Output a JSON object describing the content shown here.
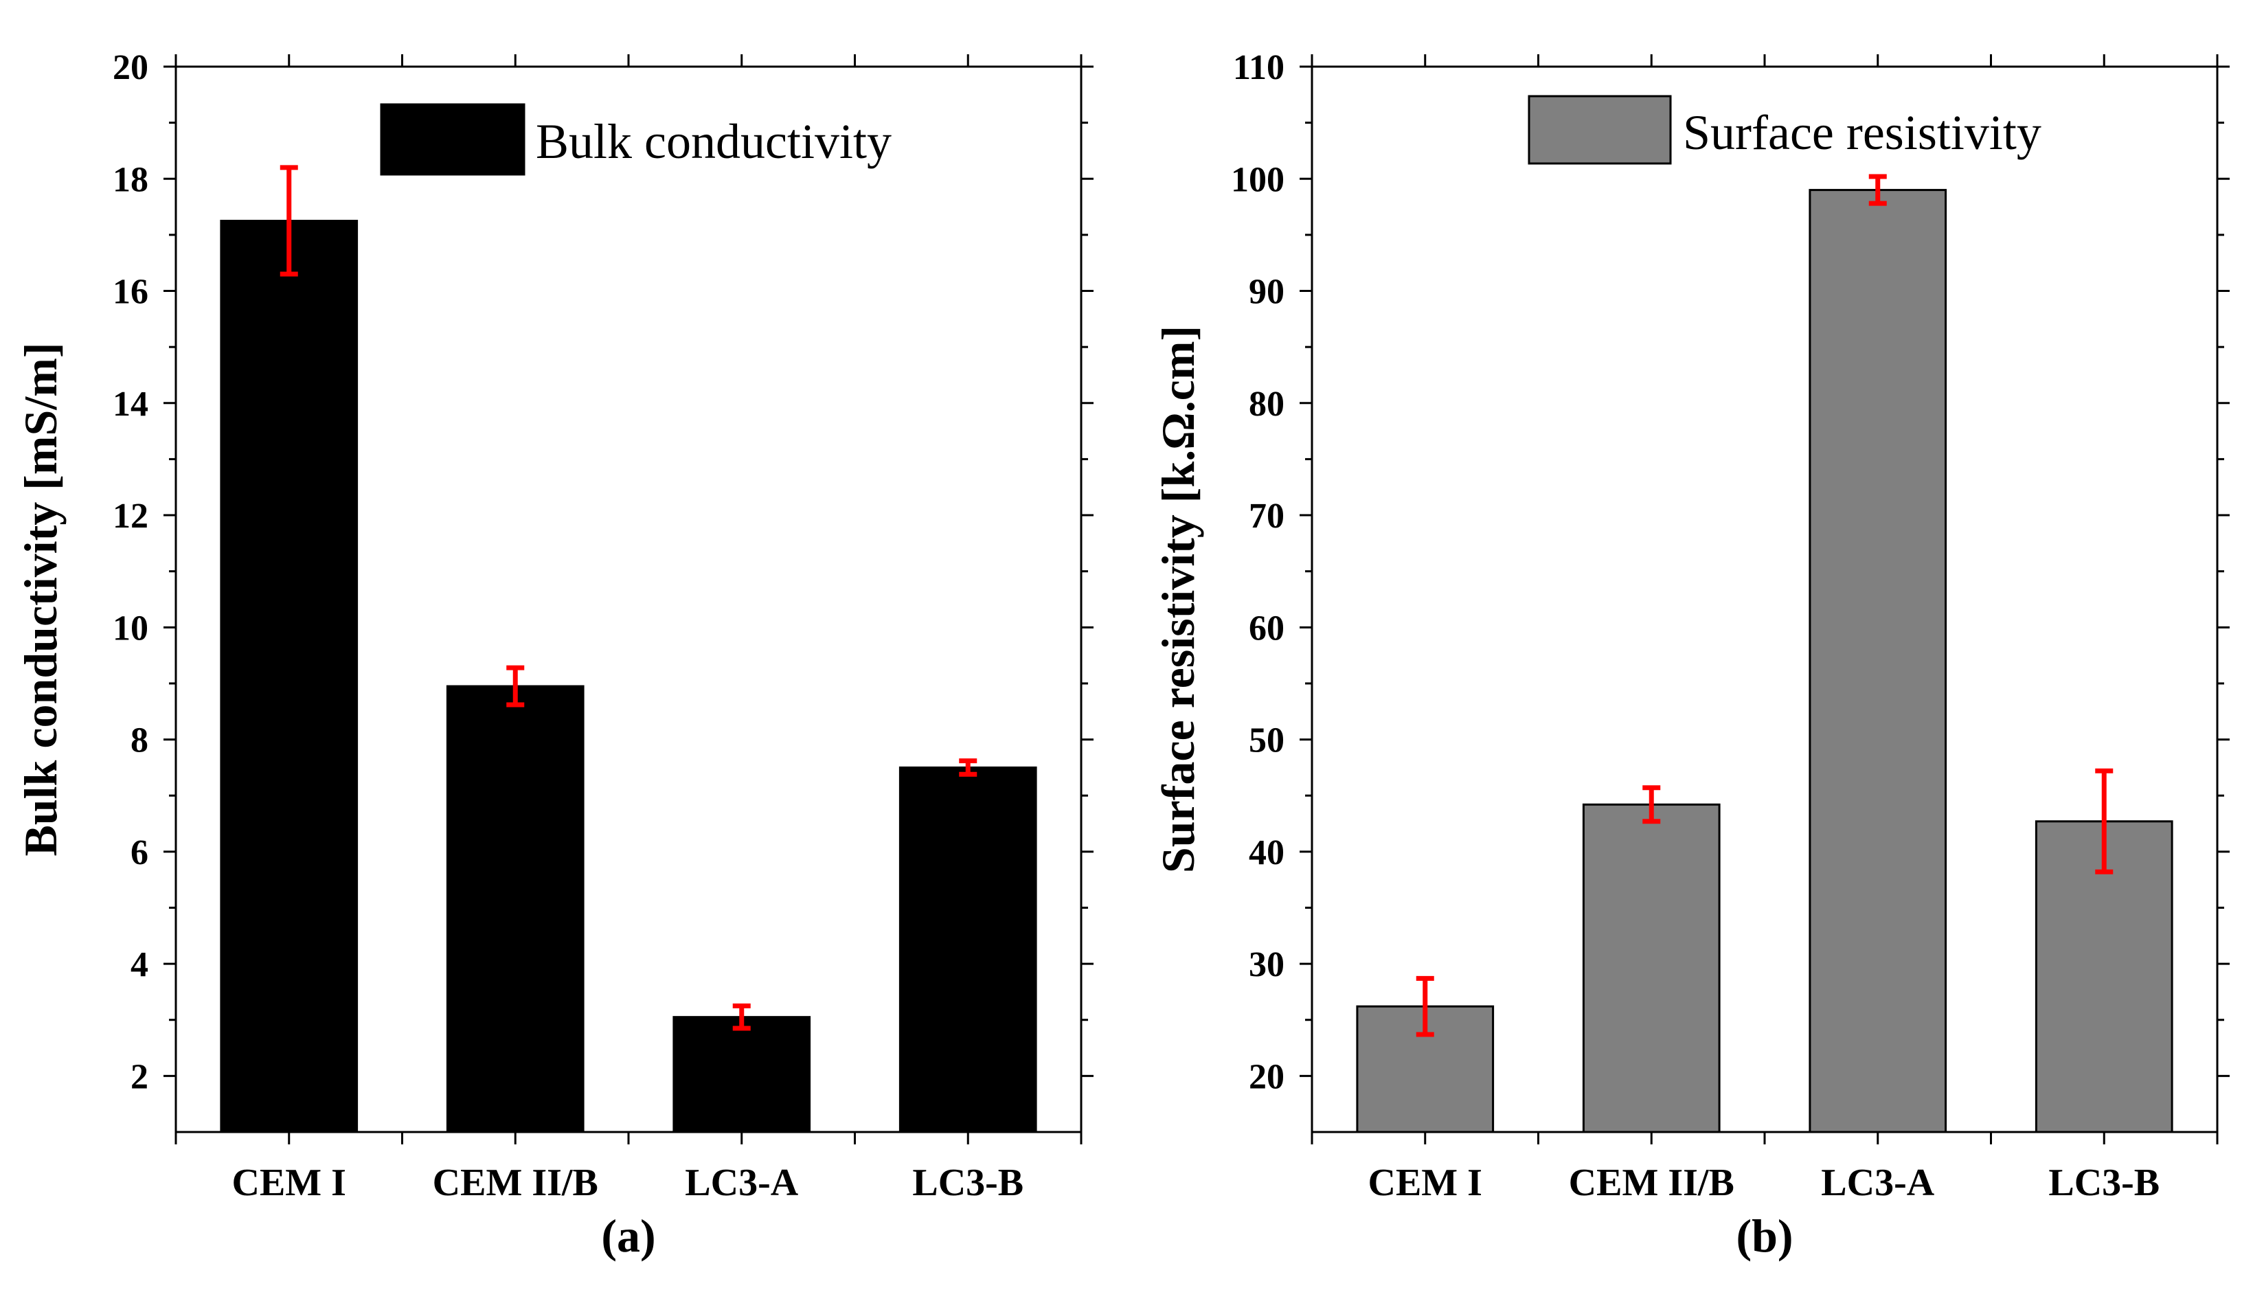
{
  "chart_data": [
    {
      "type": "bar",
      "panel_label": "(a)",
      "categories": [
        "CEM I",
        "CEM II/B",
        "LC3-A",
        "LC3-B"
      ],
      "values": [
        17.25,
        8.95,
        3.05,
        7.5
      ],
      "errors": [
        0.95,
        0.33,
        0.2,
        0.12
      ],
      "ylabel": "Bulk conductivity [mS/m]",
      "xlabel": "",
      "ylim": [
        1,
        20
      ],
      "yticks": [
        2,
        4,
        6,
        8,
        10,
        12,
        14,
        16,
        18,
        20
      ],
      "legend": "Bulk conductivity",
      "legend_position": "top-right",
      "bar_color": "#000000",
      "error_color": "#ff0000",
      "grid": false
    },
    {
      "type": "bar",
      "panel_label": "(b)",
      "categories": [
        "CEM I",
        "CEM II/B",
        "LC3-A",
        "LC3-B"
      ],
      "values": [
        26.2,
        44.2,
        99.0,
        42.7
      ],
      "errors": [
        2.5,
        1.5,
        1.2,
        4.5
      ],
      "ylabel": "Surface resistivity [k.Ω.cm]",
      "xlabel": "",
      "ylim": [
        15,
        110
      ],
      "yticks": [
        20,
        30,
        40,
        50,
        60,
        70,
        80,
        90,
        100,
        110
      ],
      "legend": "Surface resistivity",
      "legend_position": "top-right",
      "bar_color": "#808080",
      "error_color": "#ff0000",
      "grid": false
    }
  ]
}
